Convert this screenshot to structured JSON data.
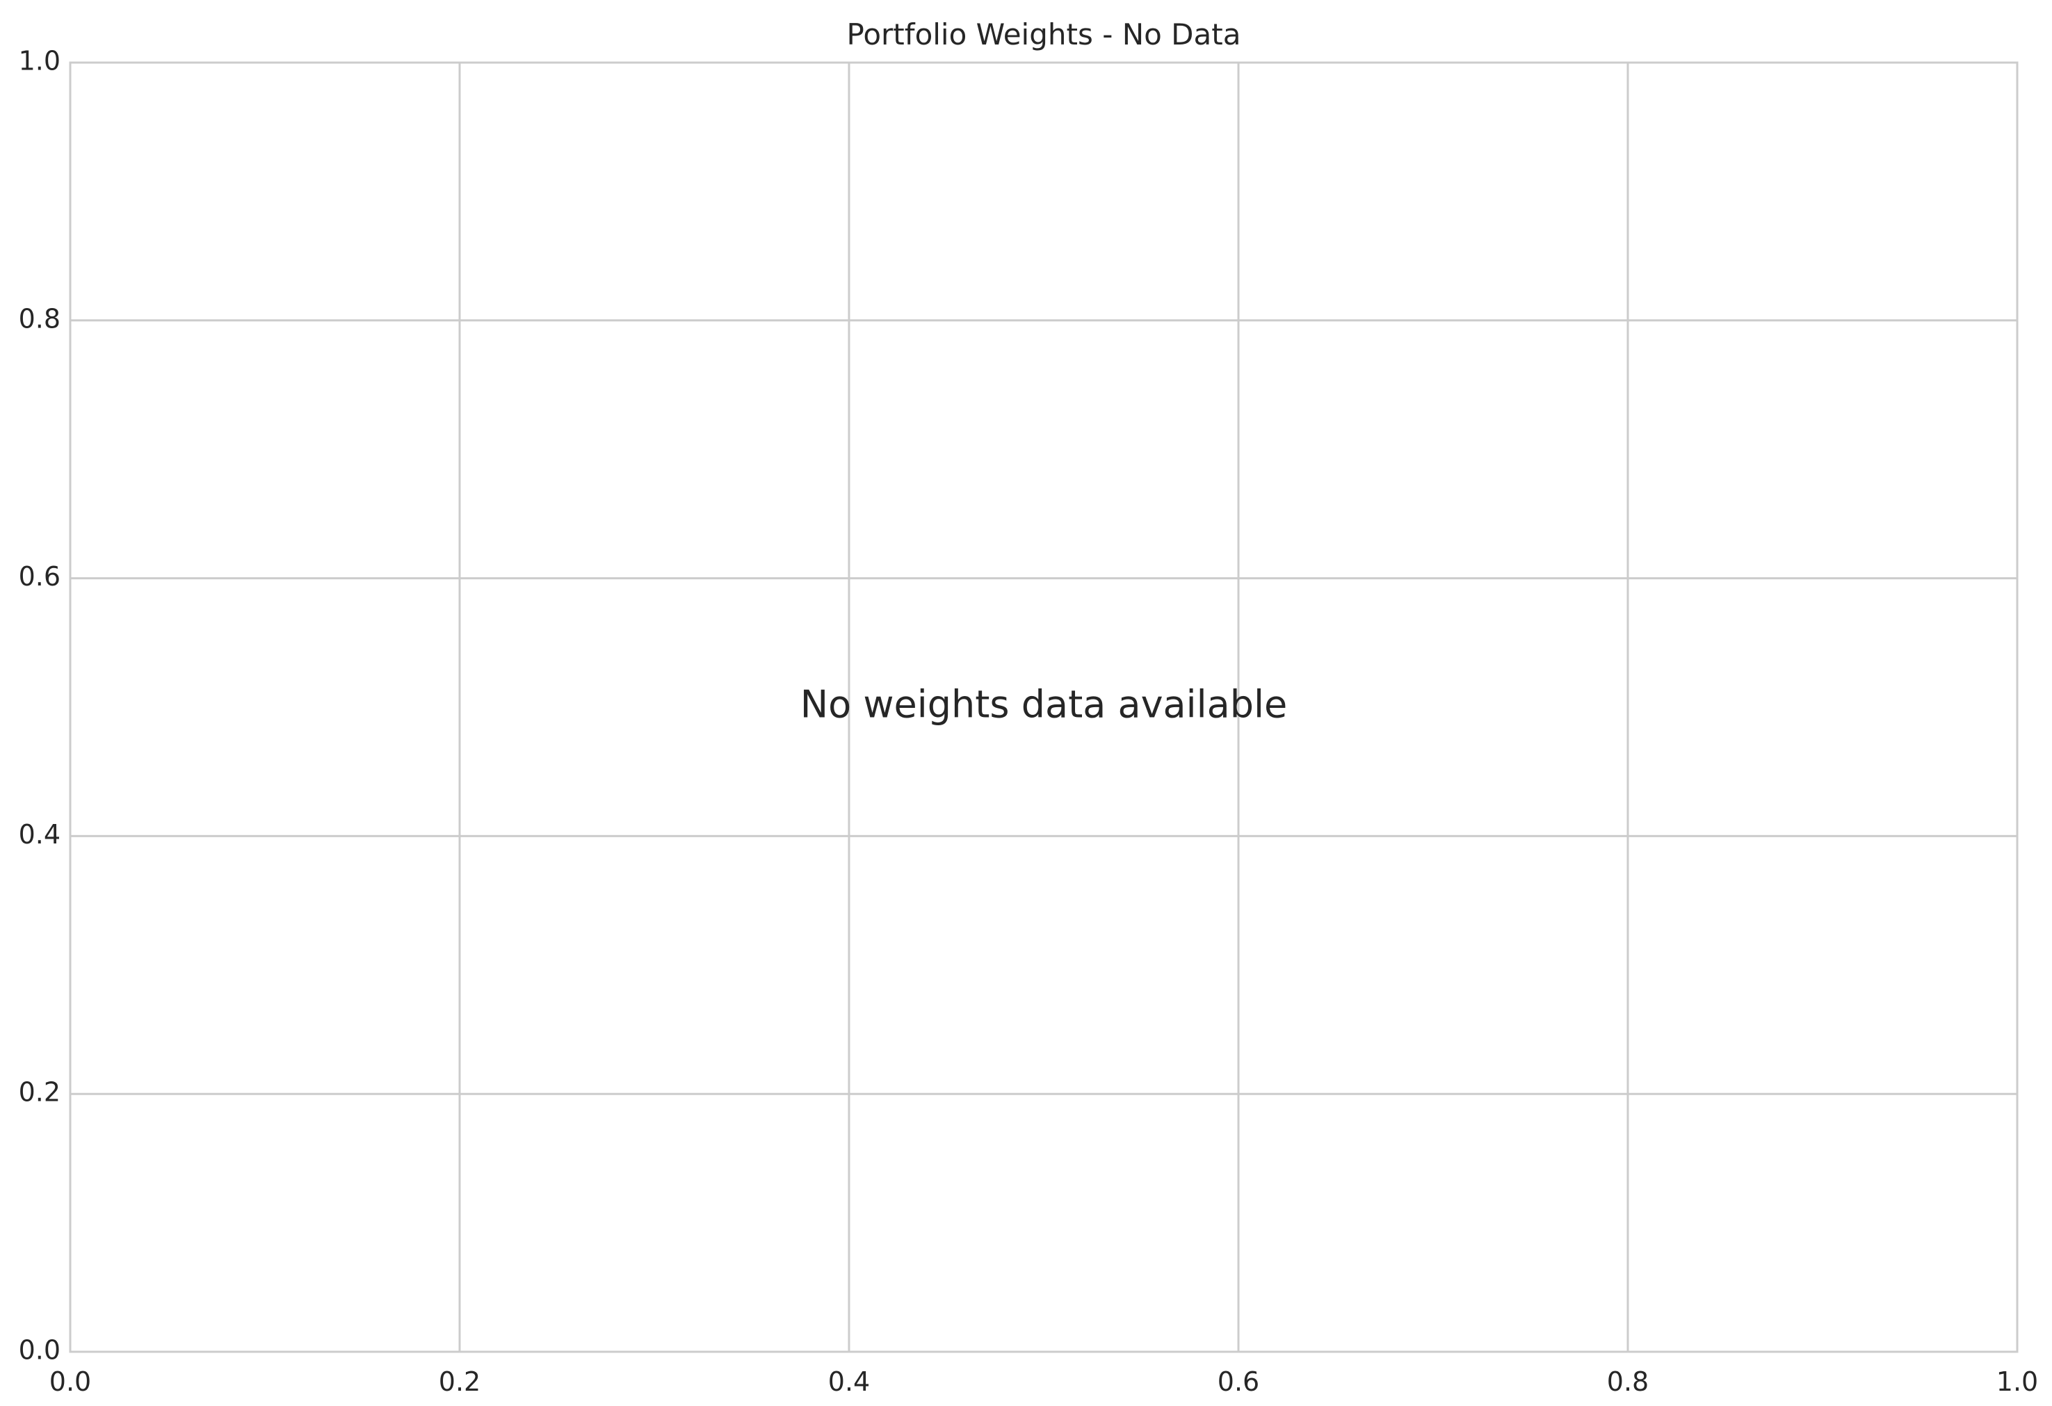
{
  "chart_data": {
    "type": "line",
    "title": "Portfolio Weights - No Data",
    "xlabel": "",
    "ylabel": "",
    "xlim": [
      0.0,
      1.0
    ],
    "ylim": [
      0.0,
      1.0
    ],
    "x_ticks": [
      "0.0",
      "0.2",
      "0.4",
      "0.6",
      "0.8",
      "1.0"
    ],
    "y_ticks": [
      "0.0",
      "0.2",
      "0.4",
      "0.6",
      "0.8",
      "1.0"
    ],
    "grid": true,
    "series": [],
    "annotation": {
      "text": "No weights data available",
      "x": 0.5,
      "y": 0.5
    },
    "colors": {
      "grid": "#cccccc",
      "text": "#262626",
      "background": "#ffffff"
    }
  }
}
